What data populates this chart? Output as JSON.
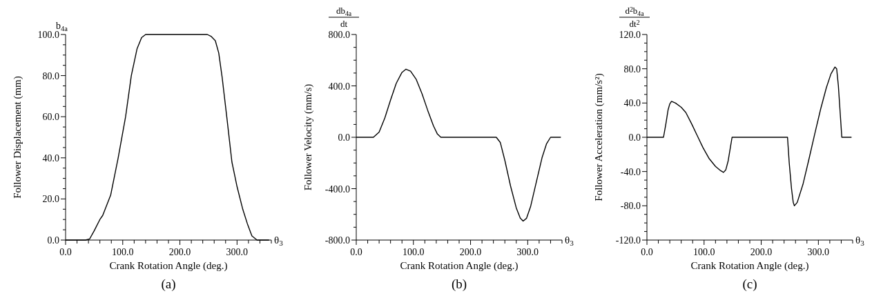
{
  "chart_data": [
    {
      "type": "line",
      "title": "(a)",
      "xlabel": "Crank Rotation Angle (deg.)",
      "ylabel": "Follower Displacement (mm)",
      "annotations": [
        "b$_{4a}$",
        "θ$_{3}$"
      ],
      "xlim": [
        0,
        360
      ],
      "ylim": [
        0,
        100
      ],
      "xticks": [
        {
          "value": 0,
          "label": "0.0"
        },
        {
          "value": 20,
          "label": null
        },
        {
          "value": 40,
          "label": null
        },
        {
          "value": 60,
          "label": null
        },
        {
          "value": 80,
          "label": null
        },
        {
          "value": 100,
          "label": "100.0"
        },
        {
          "value": 120,
          "label": null
        },
        {
          "value": 140,
          "label": null
        },
        {
          "value": 160,
          "label": null
        },
        {
          "value": 180,
          "label": null
        },
        {
          "value": 200,
          "label": "200.0"
        },
        {
          "value": 220,
          "label": null
        },
        {
          "value": 240,
          "label": null
        },
        {
          "value": 260,
          "label": null
        },
        {
          "value": 280,
          "label": null
        },
        {
          "value": 300,
          "label": "300.0"
        },
        {
          "value": 320,
          "label": null
        },
        {
          "value": 340,
          "label": null
        },
        {
          "value": 360,
          "label": null
        }
      ],
      "yticks": [
        {
          "value": 0,
          "label": "0.0"
        },
        {
          "value": 5,
          "label": null
        },
        {
          "value": 10,
          "label": null
        },
        {
          "value": 15,
          "label": null
        },
        {
          "value": 20,
          "label": "20.0"
        },
        {
          "value": 25,
          "label": null
        },
        {
          "value": 30,
          "label": null
        },
        {
          "value": 35,
          "label": null
        },
        {
          "value": 40,
          "label": "40.0"
        },
        {
          "value": 45,
          "label": null
        },
        {
          "value": 50,
          "label": null
        },
        {
          "value": 55,
          "label": null
        },
        {
          "value": 60,
          "label": "60.0"
        },
        {
          "value": 65,
          "label": null
        },
        {
          "value": 70,
          "label": null
        },
        {
          "value": 75,
          "label": null
        },
        {
          "value": 80,
          "label": "80.0"
        },
        {
          "value": 85,
          "label": null
        },
        {
          "value": 90,
          "label": null
        },
        {
          "value": 95,
          "label": null
        },
        {
          "value": 100,
          "label": "100.0"
        }
      ],
      "x": [
        0,
        35,
        42,
        50,
        60,
        65,
        79,
        92,
        105,
        115,
        125,
        133,
        140,
        248,
        255,
        262,
        268,
        274,
        282,
        291,
        300,
        310,
        318,
        326,
        335,
        356
      ],
      "series": [
        {
          "color": "#000000",
          "values": [
            0,
            0,
            0.5,
            4.5,
            10,
            12,
            22,
            40,
            60,
            80,
            93,
            98.5,
            100,
            100,
            99,
            97,
            91,
            79,
            60,
            38,
            26,
            15,
            8,
            2,
            0,
            0
          ]
        }
      ]
    },
    {
      "type": "line",
      "title": "(b)",
      "xlabel": "Crank Rotation Angle (deg.)",
      "ylabel": "Follower Velocity (mm/s)",
      "annotations": [
        "db$_{4a}$",
        "dt",
        "θ$_{3}$"
      ],
      "xlim": [
        0,
        360
      ],
      "ylim": [
        -800,
        800
      ],
      "xticks": [
        {
          "value": 0,
          "label": "0.0"
        },
        {
          "value": 20,
          "label": null
        },
        {
          "value": 40,
          "label": null
        },
        {
          "value": 60,
          "label": null
        },
        {
          "value": 80,
          "label": null
        },
        {
          "value": 100,
          "label": "100.0"
        },
        {
          "value": 120,
          "label": null
        },
        {
          "value": 140,
          "label": null
        },
        {
          "value": 160,
          "label": null
        },
        {
          "value": 180,
          "label": null
        },
        {
          "value": 200,
          "label": "200.0"
        },
        {
          "value": 220,
          "label": null
        },
        {
          "value": 240,
          "label": null
        },
        {
          "value": 260,
          "label": null
        },
        {
          "value": 280,
          "label": null
        },
        {
          "value": 300,
          "label": "300.0"
        },
        {
          "value": 320,
          "label": null
        },
        {
          "value": 340,
          "label": null
        },
        {
          "value": 360,
          "label": null
        }
      ],
      "yticks": [
        {
          "value": -800,
          "label": "-800.0"
        },
        {
          "value": -700,
          "label": null
        },
        {
          "value": -600,
          "label": null
        },
        {
          "value": -500,
          "label": null
        },
        {
          "value": -400,
          "label": "-400.0"
        },
        {
          "value": -300,
          "label": null
        },
        {
          "value": -200,
          "label": null
        },
        {
          "value": -100,
          "label": null
        },
        {
          "value": 0,
          "label": "0.0"
        },
        {
          "value": 100,
          "label": null
        },
        {
          "value": 200,
          "label": null
        },
        {
          "value": 300,
          "label": null
        },
        {
          "value": 400,
          "label": "400.0"
        },
        {
          "value": 500,
          "label": null
        },
        {
          "value": 600,
          "label": null
        },
        {
          "value": 700,
          "label": null
        },
        {
          "value": 800,
          "label": "800.0"
        }
      ],
      "x": [
        0,
        30,
        40,
        50,
        60,
        70,
        80,
        87,
        95,
        105,
        115,
        125,
        135,
        142,
        148,
        245,
        252,
        260,
        270,
        280,
        287,
        292,
        298,
        305,
        315,
        325,
        333,
        340,
        358
      ],
      "series": [
        {
          "color": "#000000",
          "values": [
            0,
            0,
            40,
            150,
            290,
            420,
            505,
            530,
            515,
            450,
            340,
            210,
            90,
            25,
            0,
            0,
            -40,
            -180,
            -380,
            -550,
            -630,
            -652,
            -630,
            -540,
            -350,
            -160,
            -50,
            0,
            0
          ]
        }
      ]
    },
    {
      "type": "line",
      "title": "(c)",
      "xlabel": "Crank Rotation Angle (deg.)",
      "ylabel": "Follower Acceleration (mm/s²)",
      "annotations": [
        "d$^{2}$b$_{4a}$",
        "dt$^{2}$",
        "θ$_{3}$"
      ],
      "xlim": [
        0,
        360
      ],
      "ylim": [
        -120,
        120
      ],
      "xticks": [
        {
          "value": 0,
          "label": "0.0"
        },
        {
          "value": 20,
          "label": null
        },
        {
          "value": 40,
          "label": null
        },
        {
          "value": 60,
          "label": null
        },
        {
          "value": 80,
          "label": null
        },
        {
          "value": 100,
          "label": "100.0"
        },
        {
          "value": 120,
          "label": null
        },
        {
          "value": 140,
          "label": null
        },
        {
          "value": 160,
          "label": null
        },
        {
          "value": 180,
          "label": null
        },
        {
          "value": 200,
          "label": "200.0"
        },
        {
          "value": 220,
          "label": null
        },
        {
          "value": 240,
          "label": null
        },
        {
          "value": 260,
          "label": null
        },
        {
          "value": 280,
          "label": null
        },
        {
          "value": 300,
          "label": "300.0"
        },
        {
          "value": 320,
          "label": null
        },
        {
          "value": 340,
          "label": null
        },
        {
          "value": 360,
          "label": null
        }
      ],
      "yticks": [
        {
          "value": -120,
          "label": "-120.0"
        },
        {
          "value": -110,
          "label": null
        },
        {
          "value": -100,
          "label": null
        },
        {
          "value": -90,
          "label": null
        },
        {
          "value": -80,
          "label": "-80.0"
        },
        {
          "value": -70,
          "label": null
        },
        {
          "value": -60,
          "label": null
        },
        {
          "value": -50,
          "label": null
        },
        {
          "value": -40,
          "label": "-40.0"
        },
        {
          "value": -30,
          "label": null
        },
        {
          "value": -20,
          "label": null
        },
        {
          "value": -10,
          "label": null
        },
        {
          "value": 0,
          "label": "0.0"
        },
        {
          "value": 10,
          "label": null
        },
        {
          "value": 20,
          "label": null
        },
        {
          "value": 30,
          "label": null
        },
        {
          "value": 40,
          "label": "40.0"
        },
        {
          "value": 50,
          "label": null
        },
        {
          "value": 60,
          "label": null
        },
        {
          "value": 70,
          "label": null
        },
        {
          "value": 80,
          "label": "80.0"
        },
        {
          "value": 90,
          "label": null
        },
        {
          "value": 100,
          "label": null
        },
        {
          "value": 110,
          "label": null
        },
        {
          "value": 120,
          "label": "120.0"
        }
      ],
      "x": [
        0,
        29,
        33,
        37,
        40,
        43,
        50,
        60,
        68,
        78,
        88,
        98,
        109,
        120,
        129,
        134,
        138,
        142,
        146,
        149,
        246,
        249,
        253,
        256,
        258,
        263,
        273,
        283,
        294,
        304,
        314,
        322,
        329,
        332,
        335,
        338,
        341,
        358
      ],
      "series": [
        {
          "color": "#000000",
          "values": [
            0,
            0,
            15,
            32,
            39,
            42,
            40,
            35,
            29,
            16,
            2,
            -12,
            -25,
            -34,
            -39,
            -41,
            -38,
            -28,
            -12,
            0,
            0,
            -30,
            -60,
            -76,
            -80,
            -76,
            -55,
            -27,
            5,
            33,
            58,
            74,
            82,
            80,
            60,
            30,
            0,
            0
          ]
        }
      ]
    }
  ]
}
